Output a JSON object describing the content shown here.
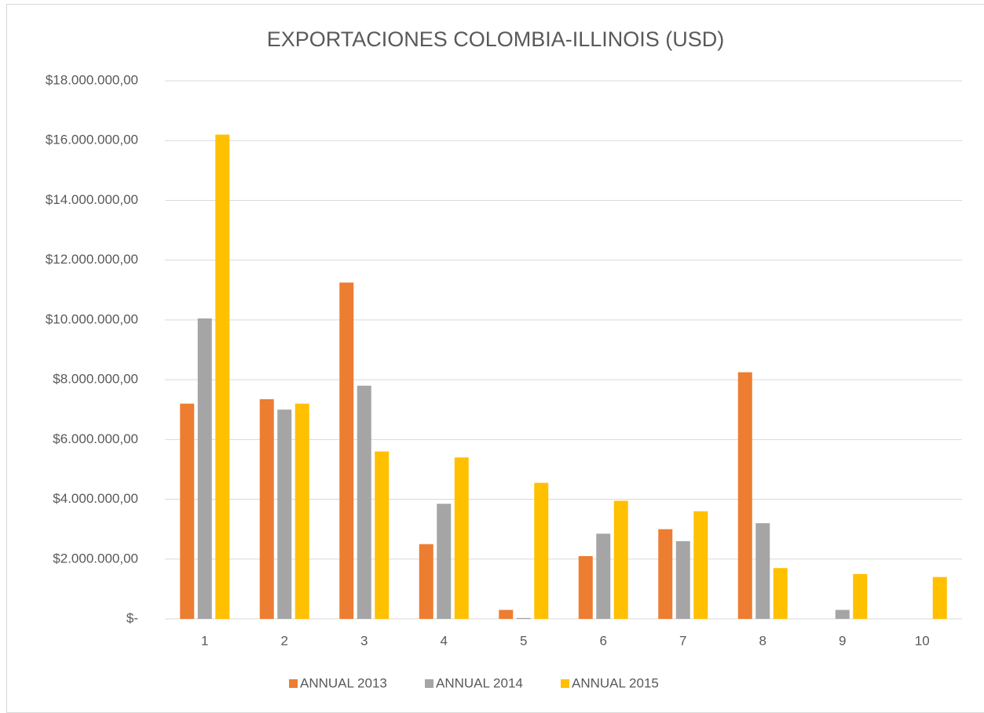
{
  "chart_data": {
    "type": "bar",
    "title": "EXPORTACIONES COLOMBIA-ILLINOIS (USD)",
    "categories": [
      "1",
      "2",
      "3",
      "4",
      "5",
      "6",
      "7",
      "8",
      "9",
      "10"
    ],
    "series": [
      {
        "name": "ANNUAL 2013",
        "color": "#ED7D31",
        "values": [
          7200000,
          7350000,
          11250000,
          2500000,
          300000,
          2100000,
          3000000,
          8250000,
          0,
          0
        ]
      },
      {
        "name": "ANNUAL 2014",
        "color": "#A5A5A5",
        "values": [
          10050000,
          7000000,
          7800000,
          3850000,
          30000,
          2850000,
          2600000,
          3200000,
          300000,
          0
        ]
      },
      {
        "name": "ANNUAL 2015",
        "color": "#FFC000",
        "values": [
          16200000,
          7200000,
          5600000,
          5400000,
          4550000,
          3950000,
          3600000,
          1700000,
          1500000,
          1400000
        ]
      }
    ],
    "ylim": [
      0,
      18000000
    ],
    "yticks": [
      {
        "value": 0,
        "label": "$-"
      },
      {
        "value": 2000000,
        "label": "$2.000.000,00"
      },
      {
        "value": 4000000,
        "label": "$4.000.000,00"
      },
      {
        "value": 6000000,
        "label": "$6.000.000,00"
      },
      {
        "value": 8000000,
        "label": "$8.000.000,00"
      },
      {
        "value": 10000000,
        "label": "$10.000.000,00"
      },
      {
        "value": 12000000,
        "label": "$12.000.000,00"
      },
      {
        "value": 14000000,
        "label": "$14.000.000,00"
      },
      {
        "value": 16000000,
        "label": "$16.000.000,00"
      },
      {
        "value": 18000000,
        "label": "$18.000.000,00"
      }
    ],
    "grid": true,
    "legend": "bottom"
  }
}
